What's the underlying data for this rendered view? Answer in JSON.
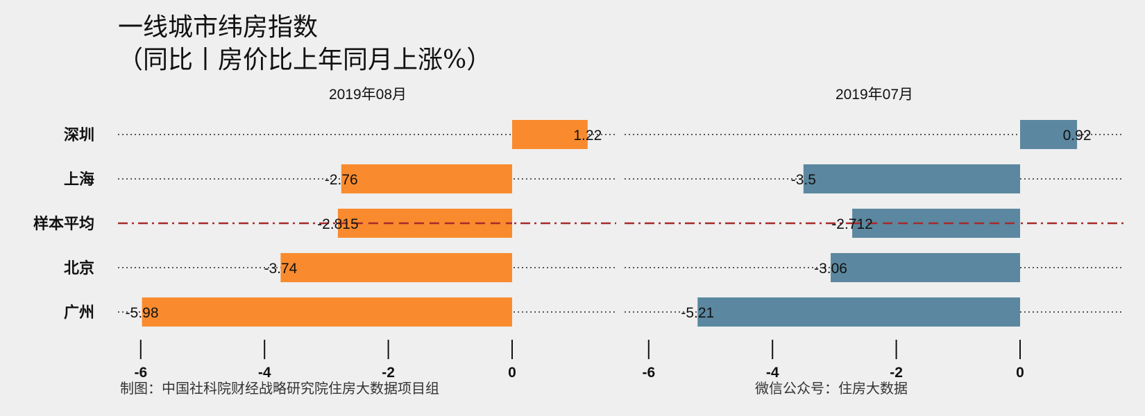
{
  "title": {
    "line1": "一线城市纬房指数",
    "line2": "（同比丨房价比上年同月上涨%）"
  },
  "footer": {
    "left": "制图：中国社科院财经战略研究院住房大数据项目组",
    "right": "微信公众号：住房大数据"
  },
  "chart_data": [
    {
      "type": "bar",
      "orientation": "horizontal",
      "title": "2019年08月",
      "categories": [
        "深圳",
        "上海",
        "样本平均",
        "北京",
        "广州"
      ],
      "values": [
        1.22,
        -2.76,
        -2.815,
        -3.74,
        -5.98
      ],
      "data_labels": [
        "1.22",
        "-2.76",
        "-2.815",
        "-3.74",
        "-5.98"
      ],
      "x_ticks": [
        "-6",
        "-4",
        "-2",
        "0"
      ],
      "x_tick_values": [
        -6,
        -4,
        -2,
        0
      ],
      "xlim": [
        -6.3,
        1.7
      ],
      "bar_color": "#f98b2e",
      "reference_line": "样本平均",
      "reference_color": "#a52a2a",
      "grid": "dotted"
    },
    {
      "type": "bar",
      "orientation": "horizontal",
      "title": "2019年07月",
      "categories": [
        "深圳",
        "上海",
        "样本平均",
        "北京",
        "广州"
      ],
      "values": [
        0.92,
        -3.5,
        -2.712,
        -3.06,
        -5.21
      ],
      "data_labels": [
        "0.92",
        "-3.5",
        "-2.712",
        "-3.06",
        "-5.21"
      ],
      "x_ticks": [
        "-6",
        "-4",
        "-2",
        "0"
      ],
      "x_tick_values": [
        -6,
        -4,
        -2,
        0
      ],
      "xlim": [
        -6.3,
        1.7
      ],
      "bar_color": "#5b88a0",
      "reference_line": "样本平均",
      "reference_color": "#a52a2a",
      "grid": "dotted"
    }
  ]
}
